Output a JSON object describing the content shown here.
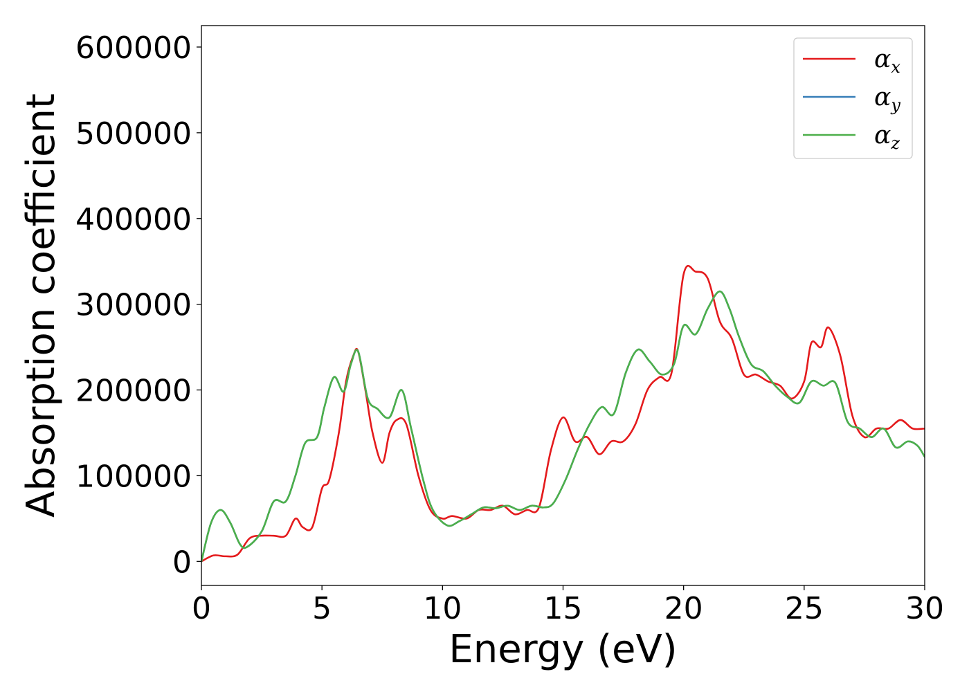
{
  "chart_data": {
    "type": "line",
    "title": "",
    "xlabel": "Energy (eV)",
    "ylabel": "Absorption coefficient",
    "xlim": [
      0,
      30
    ],
    "ylim": [
      -28000,
      625000
    ],
    "xticks": [
      0,
      5,
      10,
      15,
      20,
      25,
      30
    ],
    "xtick_labels": [
      "0",
      "5",
      "10",
      "15",
      "20",
      "25",
      "30"
    ],
    "yticks": [
      0,
      100000,
      200000,
      300000,
      400000,
      500000,
      600000
    ],
    "ytick_labels": [
      "0",
      "100000",
      "200000",
      "300000",
      "400000",
      "500000",
      "600000"
    ],
    "grid": false,
    "legend": "top-right",
    "series": [
      {
        "name": "αx",
        "legend_base": "α",
        "legend_sub": "x",
        "color": "#e41a1c",
        "x": [
          0,
          0.5,
          1.0,
          1.5,
          2.0,
          2.5,
          3.0,
          3.5,
          3.9,
          4.2,
          4.6,
          5.0,
          5.3,
          5.7,
          6.0,
          6.3,
          6.5,
          6.8,
          7.1,
          7.5,
          7.8,
          8.1,
          8.5,
          9.0,
          9.5,
          10.0,
          10.4,
          11.0,
          11.5,
          12.0,
          12.5,
          13.0,
          13.5,
          14.0,
          14.5,
          15.0,
          15.5,
          16.0,
          16.5,
          17.0,
          17.5,
          18.0,
          18.5,
          19.0,
          19.5,
          20.0,
          20.5,
          21.0,
          21.5,
          22.0,
          22.5,
          23.0,
          23.5,
          24.0,
          24.5,
          25.0,
          25.3,
          25.7,
          26.0,
          26.5,
          27.0,
          27.5,
          28.0,
          28.5,
          29.0,
          29.5,
          30.0
        ],
        "y": [
          0,
          7000,
          6000,
          8000,
          27000,
          30000,
          30000,
          30000,
          50000,
          40000,
          40000,
          85000,
          95000,
          150000,
          210000,
          240000,
          245000,
          200000,
          150000,
          115000,
          150000,
          165000,
          160000,
          100000,
          60000,
          50000,
          53000,
          50000,
          60000,
          60000,
          65000,
          55000,
          60000,
          63000,
          130000,
          168000,
          140000,
          145000,
          125000,
          140000,
          140000,
          160000,
          200000,
          215000,
          220000,
          335000,
          338000,
          330000,
          280000,
          260000,
          218000,
          218000,
          210000,
          205000,
          190000,
          210000,
          255000,
          250000,
          273000,
          240000,
          170000,
          145000,
          155000,
          155000,
          165000,
          155000,
          155000
        ]
      },
      {
        "name": "αy",
        "legend_base": "α",
        "legend_sub": "y",
        "color": "#377eb8",
        "x": [
          0,
          0.4,
          0.8,
          1.2,
          1.6,
          1.9,
          2.5,
          3.0,
          3.5,
          3.9,
          4.3,
          4.8,
          5.1,
          5.5,
          5.9,
          6.2,
          6.5,
          6.9,
          7.3,
          7.8,
          8.3,
          8.7,
          9.2,
          9.6,
          10.2,
          10.7,
          11.2,
          11.7,
          12.2,
          12.7,
          13.2,
          13.7,
          14.2,
          14.6,
          15.1,
          15.6,
          16.1,
          16.6,
          17.1,
          17.6,
          18.1,
          18.6,
          19.1,
          19.6,
          20.0,
          20.5,
          21.0,
          21.5,
          21.9,
          22.3,
          22.8,
          23.3,
          23.8,
          24.3,
          24.8,
          25.3,
          25.8,
          26.3,
          26.8,
          27.3,
          27.8,
          28.3,
          28.8,
          29.3,
          29.7,
          30.0
        ],
        "y": [
          0,
          45000,
          60000,
          45000,
          20000,
          17000,
          35000,
          70000,
          70000,
          100000,
          138000,
          145000,
          180000,
          215000,
          198000,
          230000,
          245000,
          190000,
          178000,
          168000,
          200000,
          155000,
          95000,
          60000,
          42000,
          47000,
          55000,
          63000,
          62000,
          65000,
          60000,
          65000,
          63000,
          68000,
          95000,
          130000,
          160000,
          180000,
          172000,
          220000,
          247000,
          233000,
          218000,
          230000,
          275000,
          265000,
          295000,
          315000,
          295000,
          262000,
          230000,
          222000,
          205000,
          192000,
          185000,
          210000,
          205000,
          208000,
          163000,
          155000,
          145000,
          155000,
          133000,
          140000,
          135000,
          122000
        ]
      },
      {
        "name": "αz",
        "legend_base": "α",
        "legend_sub": "z",
        "color": "#4daf4a",
        "x": [
          0,
          0.4,
          0.8,
          1.2,
          1.6,
          1.9,
          2.5,
          3.0,
          3.5,
          3.9,
          4.3,
          4.8,
          5.1,
          5.5,
          5.9,
          6.2,
          6.5,
          6.9,
          7.3,
          7.8,
          8.3,
          8.7,
          9.2,
          9.6,
          10.2,
          10.7,
          11.2,
          11.7,
          12.2,
          12.7,
          13.2,
          13.7,
          14.2,
          14.6,
          15.1,
          15.6,
          16.1,
          16.6,
          17.1,
          17.6,
          18.1,
          18.6,
          19.1,
          19.6,
          20.0,
          20.5,
          21.0,
          21.5,
          21.9,
          22.3,
          22.8,
          23.3,
          23.8,
          24.3,
          24.8,
          25.3,
          25.8,
          26.3,
          26.8,
          27.3,
          27.8,
          28.3,
          28.8,
          29.3,
          29.7,
          30.0
        ],
        "y": [
          0,
          45000,
          60000,
          45000,
          20000,
          17000,
          35000,
          70000,
          70000,
          100000,
          138000,
          145000,
          180000,
          215000,
          198000,
          230000,
          245000,
          190000,
          178000,
          168000,
          200000,
          155000,
          95000,
          60000,
          42000,
          47000,
          55000,
          63000,
          62000,
          65000,
          60000,
          65000,
          63000,
          68000,
          95000,
          130000,
          160000,
          180000,
          172000,
          220000,
          247000,
          233000,
          218000,
          230000,
          275000,
          265000,
          295000,
          315000,
          295000,
          262000,
          230000,
          222000,
          205000,
          192000,
          185000,
          210000,
          205000,
          208000,
          163000,
          155000,
          145000,
          155000,
          133000,
          140000,
          135000,
          122000
        ]
      }
    ]
  }
}
